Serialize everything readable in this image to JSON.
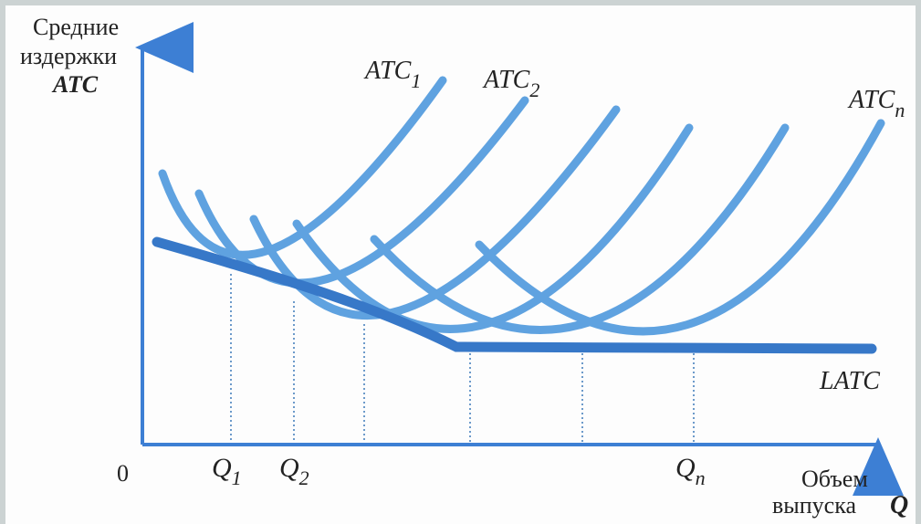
{
  "axes": {
    "y_label_line1": "Средние",
    "y_label_line2": "издержки",
    "y_label_line3": "ATC",
    "x_label_line1": "Объем",
    "x_label_line2": "выпуска",
    "x_label_sym": "Q",
    "origin": "0"
  },
  "ticks": [
    {
      "base": "Q",
      "sub": "1"
    },
    {
      "base": "Q",
      "sub": "2"
    },
    {
      "base": "Q",
      "sub": "n"
    }
  ],
  "curve_labels": [
    {
      "base": "ATC",
      "sub": "1"
    },
    {
      "base": "ATC",
      "sub": "2"
    },
    {
      "base": "ATC",
      "sub": "n"
    }
  ],
  "envelope_label": "LATC",
  "colors": {
    "curve": "#5fa2e0",
    "envelope": "#3778c8",
    "axis": "#3d7fd4",
    "guide": "#2f6fb5",
    "frame": "#ccd3d3"
  }
}
